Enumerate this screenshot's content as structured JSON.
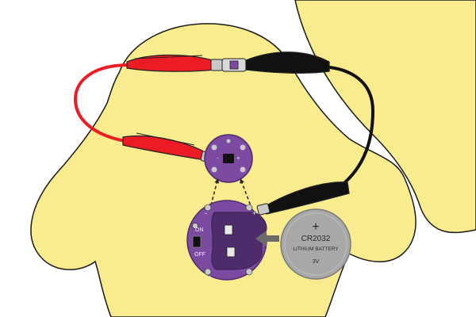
{
  "colors": {
    "background": "#ffffff",
    "body_fill": "#f8ec8e",
    "body_stroke": "#1a1a1a",
    "board_purple": "#7d4aa2",
    "board_purple_dark": "#4e2b6a",
    "pad_silver": "#c9c9c9",
    "wire_red": "#ec1c24",
    "wire_black": "#111111",
    "battery_gray": "#a8a8a8",
    "arrow_gray": "#6b6b6b"
  },
  "battery": {
    "plus_symbol": "+",
    "model": "CR2032",
    "type": "LITHIUM BATTERY",
    "voltage": "3V"
  },
  "battery_holder": {
    "switch_on_label": "ON",
    "switch_off_label": "OFF",
    "plus_label": "+",
    "minus_label": "-"
  },
  "led_board": {
    "plus_label": "+",
    "minus_label": "-"
  },
  "icons": {
    "insert_arrow": "arrow-left-icon",
    "placement_arrows": "dashed-arrow-icon"
  }
}
